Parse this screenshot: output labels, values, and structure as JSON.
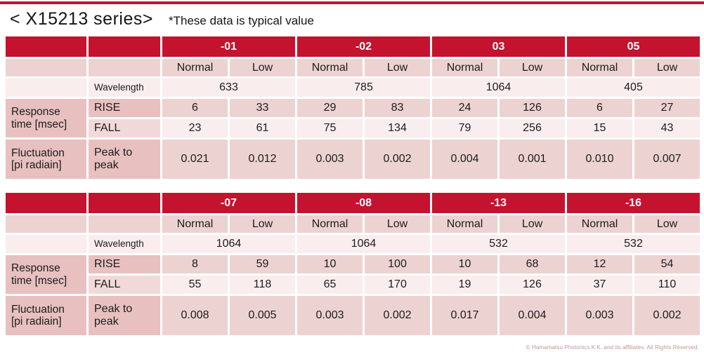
{
  "page": {
    "title": "< X15213 series>",
    "note": "*These data is typical value",
    "footer": "© Hamamatsu Photonics K.K. and its affiliates. All Rights Reserved."
  },
  "colors": {
    "header_red": "#c4122f",
    "top_line": "#c4122f",
    "row_pink_medium": "#edd2d2",
    "row_pink_light": "#f9eded",
    "label_pink_dark": "#e8c0c0",
    "label_pink_soft": "#f2d9d9",
    "footer_text": "#c09595"
  },
  "labels": {
    "normal": "Normal",
    "low": "Low",
    "wavelength": "Wavelength",
    "response_time": {
      "l1": "Response",
      "l2": "time [msec]"
    },
    "rise": "RISE",
    "fall": "FALL",
    "fluctuation": {
      "l1": "Fluctuation",
      "l2": "[pi radiain]"
    },
    "peak_to_peak": {
      "l1": "Peak to",
      "l2": "peak"
    }
  },
  "table1": {
    "groups": [
      "-01",
      "-02",
      "03",
      "05"
    ],
    "wavelength": [
      "633",
      "785",
      "1064",
      "405"
    ],
    "rise": [
      "6",
      "33",
      "29",
      "83",
      "24",
      "126",
      "6",
      "27"
    ],
    "fall": [
      "23",
      "61",
      "75",
      "134",
      "79",
      "256",
      "15",
      "43"
    ],
    "peak": [
      "0.021",
      "0.012",
      "0.003",
      "0.002",
      "0.004",
      "0.001",
      "0.010",
      "0.007"
    ]
  },
  "table2": {
    "groups": [
      "-07",
      "-08",
      "-13",
      "-16"
    ],
    "wavelength": [
      "1064",
      "1064",
      "532",
      "532"
    ],
    "rise": [
      "8",
      "59",
      "10",
      "100",
      "10",
      "68",
      "12",
      "54"
    ],
    "fall": [
      "55",
      "118",
      "65",
      "170",
      "19",
      "126",
      "37",
      "110"
    ],
    "peak": [
      "0.008",
      "0.005",
      "0.003",
      "0.002",
      "0.017",
      "0.004",
      "0.003",
      "0.002"
    ]
  }
}
